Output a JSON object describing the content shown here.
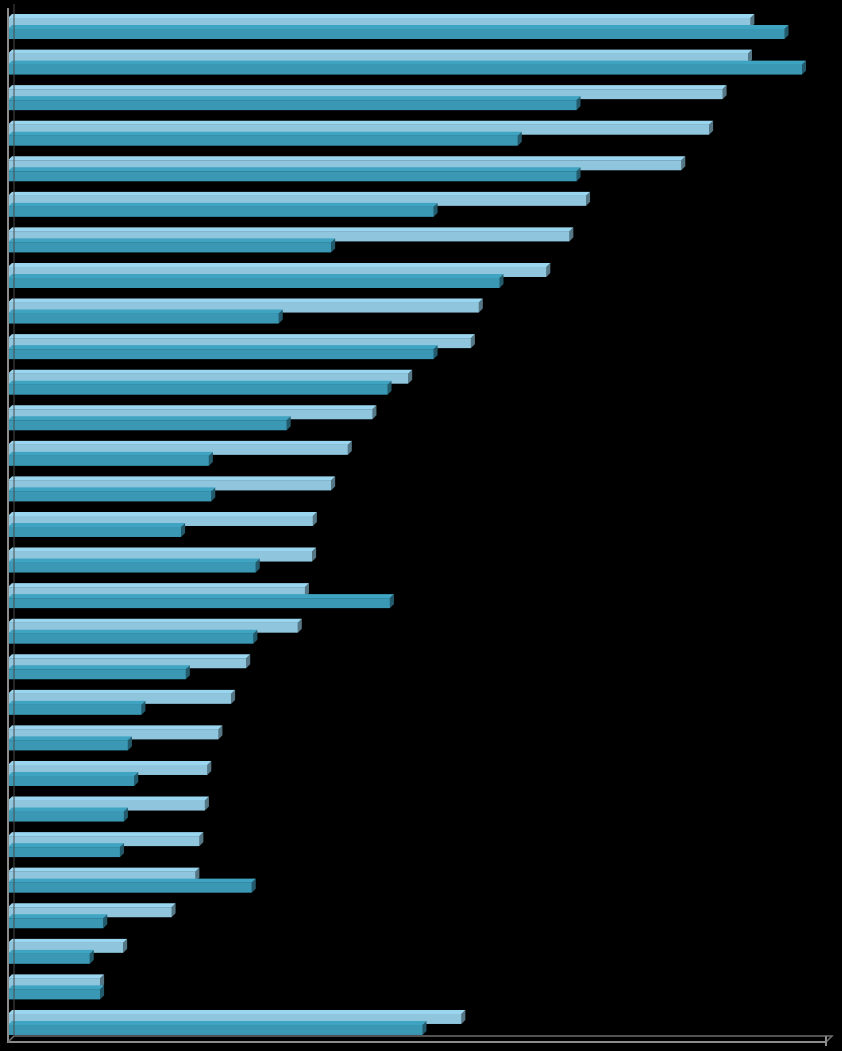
{
  "chart_data": {
    "type": "bar",
    "orientation": "horizontal",
    "title": "",
    "xlabel": "",
    "ylabel": "",
    "grid": false,
    "legend": "none",
    "xlim": [
      0,
      100
    ],
    "series": [
      {
        "color": "#8fc6dd",
        "values": [
          93.5,
          93.2,
          90,
          88.3,
          84.8,
          72.8,
          70.7,
          67.8,
          59.3,
          58.3,
          50.4,
          45.9,
          42.8,
          40.7,
          38.4,
          38.3,
          37.4,
          36.5,
          30,
          28.1,
          26.5,
          25.1,
          24.8,
          24.1,
          23.6,
          20.6,
          14.5,
          11.6,
          57.1
        ]
      },
      {
        "color": "#3a98b4",
        "values": [
          97.8,
          100,
          71.6,
          64.2,
          71.6,
          53.6,
          40.7,
          61.9,
          34.1,
          53.6,
          47.8,
          35.1,
          25.3,
          25.6,
          21.8,
          31.2,
          48.1,
          30.9,
          22.4,
          16.8,
          15.1,
          15.9,
          14.6,
          14.1,
          30.7,
          12,
          10.3,
          11.6,
          52.2
        ]
      }
    ],
    "colors": {
      "axis": "#8c8c8c",
      "background": "#000000"
    }
  }
}
